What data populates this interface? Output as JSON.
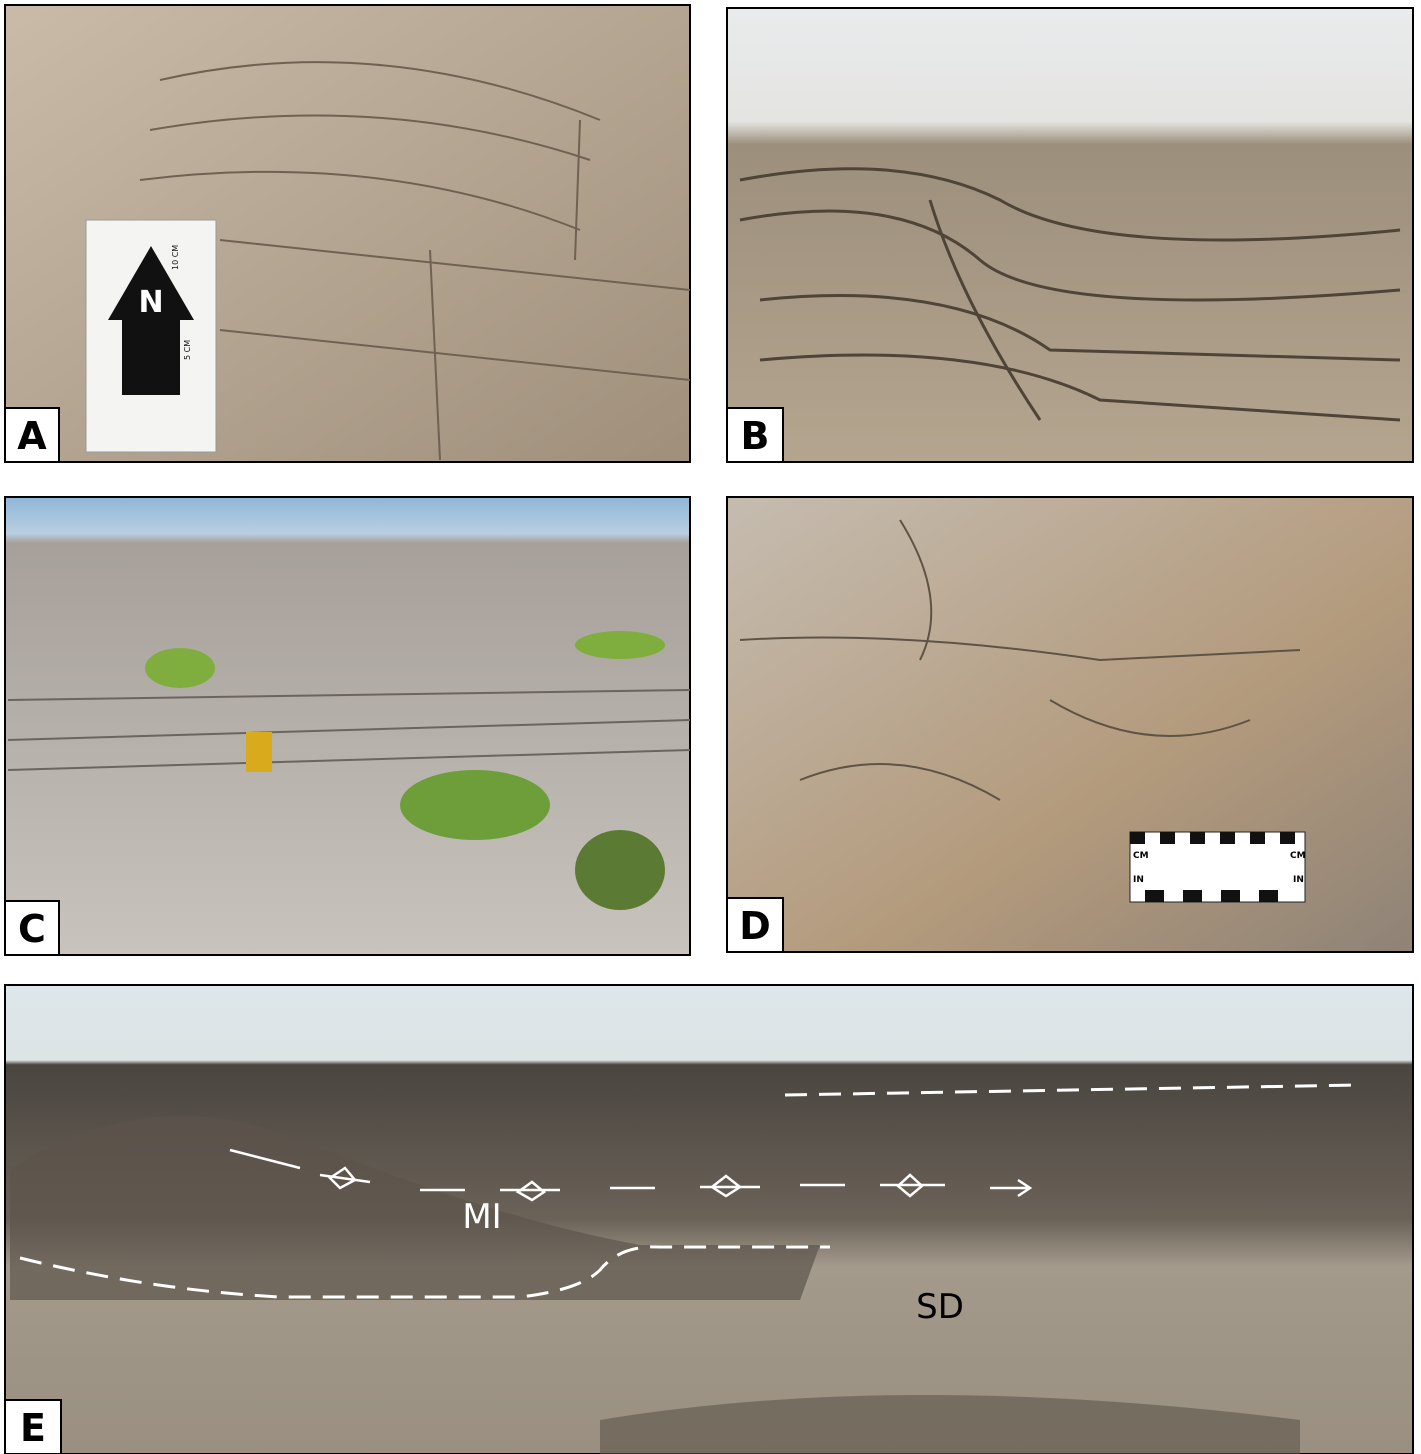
{
  "panels": [
    {
      "label": "A",
      "scale_card": {
        "arrow_letter": "N",
        "upper": "10 CM",
        "lower": "5 CM"
      }
    },
    {
      "label": "B"
    },
    {
      "label": "C"
    },
    {
      "label": "D",
      "scale_card": {
        "left_top": "CM",
        "left_bottom": "IN",
        "right_top": "CM",
        "right_bottom": "IN"
      }
    },
    {
      "label": "E",
      "annotations": [
        "MI",
        "SD"
      ]
    }
  ]
}
